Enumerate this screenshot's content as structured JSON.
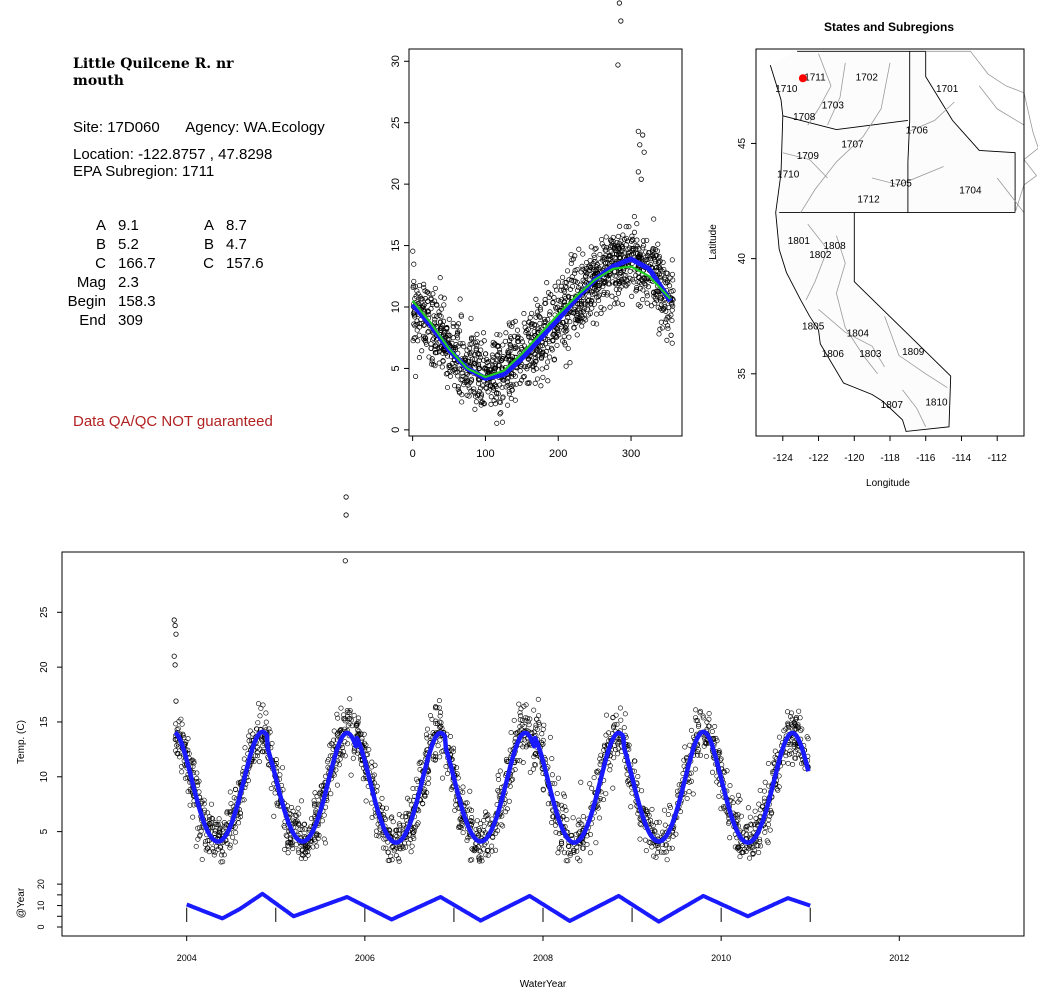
{
  "info": {
    "title": "Little Quilcene R. nr\nmouth",
    "site_label": "Site:",
    "site": "17D060",
    "agency_label": "Agency:",
    "agency": "WA.Ecology",
    "location_label": "Location:",
    "location": "-122.8757 , 47.8298",
    "subregion_label": "EPA Subregion:",
    "subregion": "1711",
    "params_left": [
      {
        "label": "A",
        "value": "9.1"
      },
      {
        "label": "B",
        "value": "5.2"
      },
      {
        "label": "C",
        "value": "166.7"
      },
      {
        "label": "Mag",
        "value": "2.3"
      },
      {
        "label": "Begin",
        "value": "158.3"
      },
      {
        "label": "End",
        "value": "309"
      }
    ],
    "params_right": [
      {
        "label": "A",
        "value": "8.7"
      },
      {
        "label": "B",
        "value": "4.7"
      },
      {
        "label": "C",
        "value": "157.6"
      }
    ],
    "qa_note": "Data QA/QC NOT guaranteed",
    "qa_color": "#b22222"
  },
  "chart_data": [
    {
      "type": "scatter",
      "title": "",
      "xlabel": "",
      "ylabel": "",
      "xlim": [
        -5,
        370
      ],
      "ylim": [
        -0.5,
        31
      ],
      "x_ticks": [
        0,
        100,
        200,
        300
      ],
      "y_ticks": [
        0,
        5,
        10,
        15,
        20,
        25,
        30
      ],
      "series": [
        {
          "role": "points",
          "marker": "open-circle",
          "color": "#000000"
        },
        {
          "role": "fit",
          "color": "#1a1aff",
          "x": [
            0,
            25,
            50,
            75,
            100,
            125,
            150,
            175,
            200,
            225,
            250,
            275,
            300,
            325,
            355
          ],
          "y": [
            10.2,
            8.5,
            6.5,
            5.0,
            4.2,
            4.5,
            5.8,
            7.4,
            9.0,
            10.7,
            12.2,
            13.3,
            13.9,
            13.1,
            10.4
          ]
        },
        {
          "role": "fit",
          "color": "#22cc22",
          "x": [
            0,
            25,
            50,
            75,
            100,
            125,
            150,
            175,
            200,
            225,
            250,
            275,
            300,
            325,
            355
          ],
          "y": [
            10.5,
            8.7,
            6.6,
            5.0,
            4.3,
            4.8,
            6.2,
            7.8,
            9.4,
            10.9,
            12.2,
            13.1,
            13.3,
            12.5,
            10.6
          ]
        }
      ],
      "outliers": [
        [
          282,
          29.7
        ],
        [
          310,
          24.3
        ],
        [
          316,
          24.0
        ],
        [
          312,
          23.2
        ],
        [
          318,
          22.6
        ],
        [
          310,
          21.0
        ],
        [
          314,
          20.4
        ],
        [
          355,
          7.7
        ]
      ]
    },
    {
      "type": "map",
      "title": "States and Subregions",
      "xlabel": "Longitude",
      "ylabel": "Latitude",
      "xlim": [
        -125.5,
        -110.5
      ],
      "ylim": [
        32.3,
        49.1
      ],
      "x_ticks": [
        -124,
        -122,
        -120,
        -118,
        -116,
        -114,
        -112
      ],
      "y_ticks": [
        35,
        40,
        45
      ],
      "site_marker": {
        "lon": -122.8757,
        "lat": 47.8298,
        "color": "#ff0000"
      },
      "region_labels": [
        {
          "label": "1711",
          "lon": -122.2,
          "lat": 47.9
        },
        {
          "label": "1702",
          "lon": -119.3,
          "lat": 47.9
        },
        {
          "label": "1701",
          "lon": -114.8,
          "lat": 47.4
        },
        {
          "label": "1710",
          "lon": -123.8,
          "lat": 47.4
        },
        {
          "label": "1703",
          "lon": -121.2,
          "lat": 46.7
        },
        {
          "label": "1708",
          "lon": -122.8,
          "lat": 46.2
        },
        {
          "label": "1706",
          "lon": -116.5,
          "lat": 45.6
        },
        {
          "label": "1707",
          "lon": -120.1,
          "lat": 45.0
        },
        {
          "label": "1709",
          "lon": -122.6,
          "lat": 44.5
        },
        {
          "label": "1710",
          "lon": -123.7,
          "lat": 43.7
        },
        {
          "label": "1705",
          "lon": -117.4,
          "lat": 43.3
        },
        {
          "label": "1704",
          "lon": -113.5,
          "lat": 43.0
        },
        {
          "label": "1712",
          "lon": -119.2,
          "lat": 42.6
        },
        {
          "label": "1801",
          "lon": -123.1,
          "lat": 40.8
        },
        {
          "label": "1808",
          "lon": -121.1,
          "lat": 40.6
        },
        {
          "label": "1802",
          "lon": -121.9,
          "lat": 40.2
        },
        {
          "label": "1805",
          "lon": -122.3,
          "lat": 37.1
        },
        {
          "label": "1804",
          "lon": -119.8,
          "lat": 36.8
        },
        {
          "label": "1806",
          "lon": -121.2,
          "lat": 35.9
        },
        {
          "label": "1803",
          "lon": -119.1,
          "lat": 35.9
        },
        {
          "label": "1809",
          "lon": -116.7,
          "lat": 36.0
        },
        {
          "label": "1807",
          "lon": -117.9,
          "lat": 33.7
        },
        {
          "label": "1810",
          "lon": -115.4,
          "lat": 33.8
        }
      ]
    },
    {
      "type": "scatter",
      "title": "",
      "xlabel": "WaterYear",
      "ylabel": "Temp. (C)",
      "xlim": [
        2002.6,
        2013.4
      ],
      "ylim": [
        1.5,
        30.5
      ],
      "x_ticks": [
        2004,
        2006,
        2008,
        2010,
        2012
      ],
      "y_ticks": [
        5,
        10,
        15,
        20,
        25
      ],
      "series": [
        {
          "role": "points",
          "marker": "open-circle",
          "color": "#000000"
        },
        {
          "role": "fit",
          "color": "#1a1aff",
          "start": 2003.87,
          "end": 2010.98
        }
      ],
      "cycles": [
        {
          "start": 2003.87,
          "peak": 2004.85,
          "max": 14.1,
          "min": 4.1
        },
        {
          "start": 2004.9,
          "peak": 2005.8,
          "max": 14.0,
          "min": 4.1
        },
        {
          "start": 2005.9,
          "peak": 2006.85,
          "max": 14.0,
          "min": 4.0
        },
        {
          "start": 2006.9,
          "peak": 2007.8,
          "max": 14.0,
          "min": 4.1
        },
        {
          "start": 2007.9,
          "peak": 2008.85,
          "max": 14.0,
          "min": 4.0
        },
        {
          "start": 2008.9,
          "peak": 2009.8,
          "max": 14.1,
          "min": 4.1
        },
        {
          "start": 2009.9,
          "peak": 2010.8,
          "max": 14.0,
          "min": 4.0
        }
      ],
      "outliers": [
        [
          2003.86,
          24.3
        ],
        [
          2003.87,
          23.8
        ],
        [
          2003.88,
          23.0
        ],
        [
          2003.86,
          21.0
        ],
        [
          2003.87,
          20.2
        ],
        [
          2003.88,
          16.9
        ],
        [
          2005.78,
          29.7
        ],
        [
          2005.79,
          32.6
        ],
        [
          2005.79,
          33.7
        ]
      ]
    },
    {
      "type": "line",
      "title": "",
      "xlabel": "",
      "ylabel": "@Year",
      "xlim": [
        2002.6,
        2013.4
      ],
      "ylim": [
        -2,
        26
      ],
      "y_ticks": [
        0,
        5,
        10,
        15,
        20
      ],
      "y_tick_labels": [
        "0",
        "10",
        "20"
      ],
      "year_marks": [
        2004,
        2005,
        2006,
        2007,
        2008,
        2009,
        2010,
        2011
      ],
      "series": [
        {
          "role": "line",
          "color": "#1a1aff",
          "x": [
            2004.0,
            2004.4,
            2004.6,
            2004.85,
            2005.2,
            2005.8,
            2006.3,
            2006.85,
            2007.3,
            2007.85,
            2008.3,
            2008.85,
            2009.3,
            2009.8,
            2010.3,
            2010.75,
            2011.0
          ],
          "y": [
            10.5,
            4.0,
            8.5,
            15.5,
            5.0,
            14.0,
            3.5,
            14.0,
            3.0,
            14.5,
            2.8,
            14.5,
            2.5,
            14.5,
            5.0,
            13.5,
            10.0
          ]
        }
      ]
    }
  ]
}
